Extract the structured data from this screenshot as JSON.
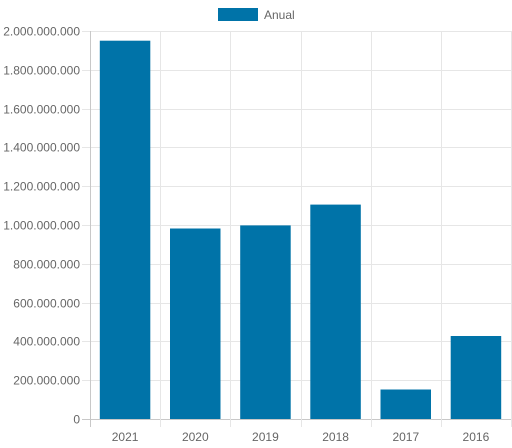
{
  "chart_data": {
    "type": "bar",
    "categories": [
      "2021",
      "2020",
      "2019",
      "2018",
      "2017",
      "2016"
    ],
    "series": [
      {
        "name": "Anual",
        "values": [
          1950000000,
          982000000,
          998000000,
          1105000000,
          152000000,
          428000000
        ],
        "color": "#0073a8"
      }
    ],
    "y_ticks": [
      "0",
      "200.000.000",
      "400.000.000",
      "600.000.000",
      "800.000.000",
      "1.000.000.000",
      "1.200.000.000",
      "1.400.000.000",
      "1.600.000.000",
      "1.800.000.000",
      "2.000.000.000"
    ],
    "ylim": [
      0,
      2000000000
    ],
    "grid": true,
    "legend_position": "top"
  }
}
